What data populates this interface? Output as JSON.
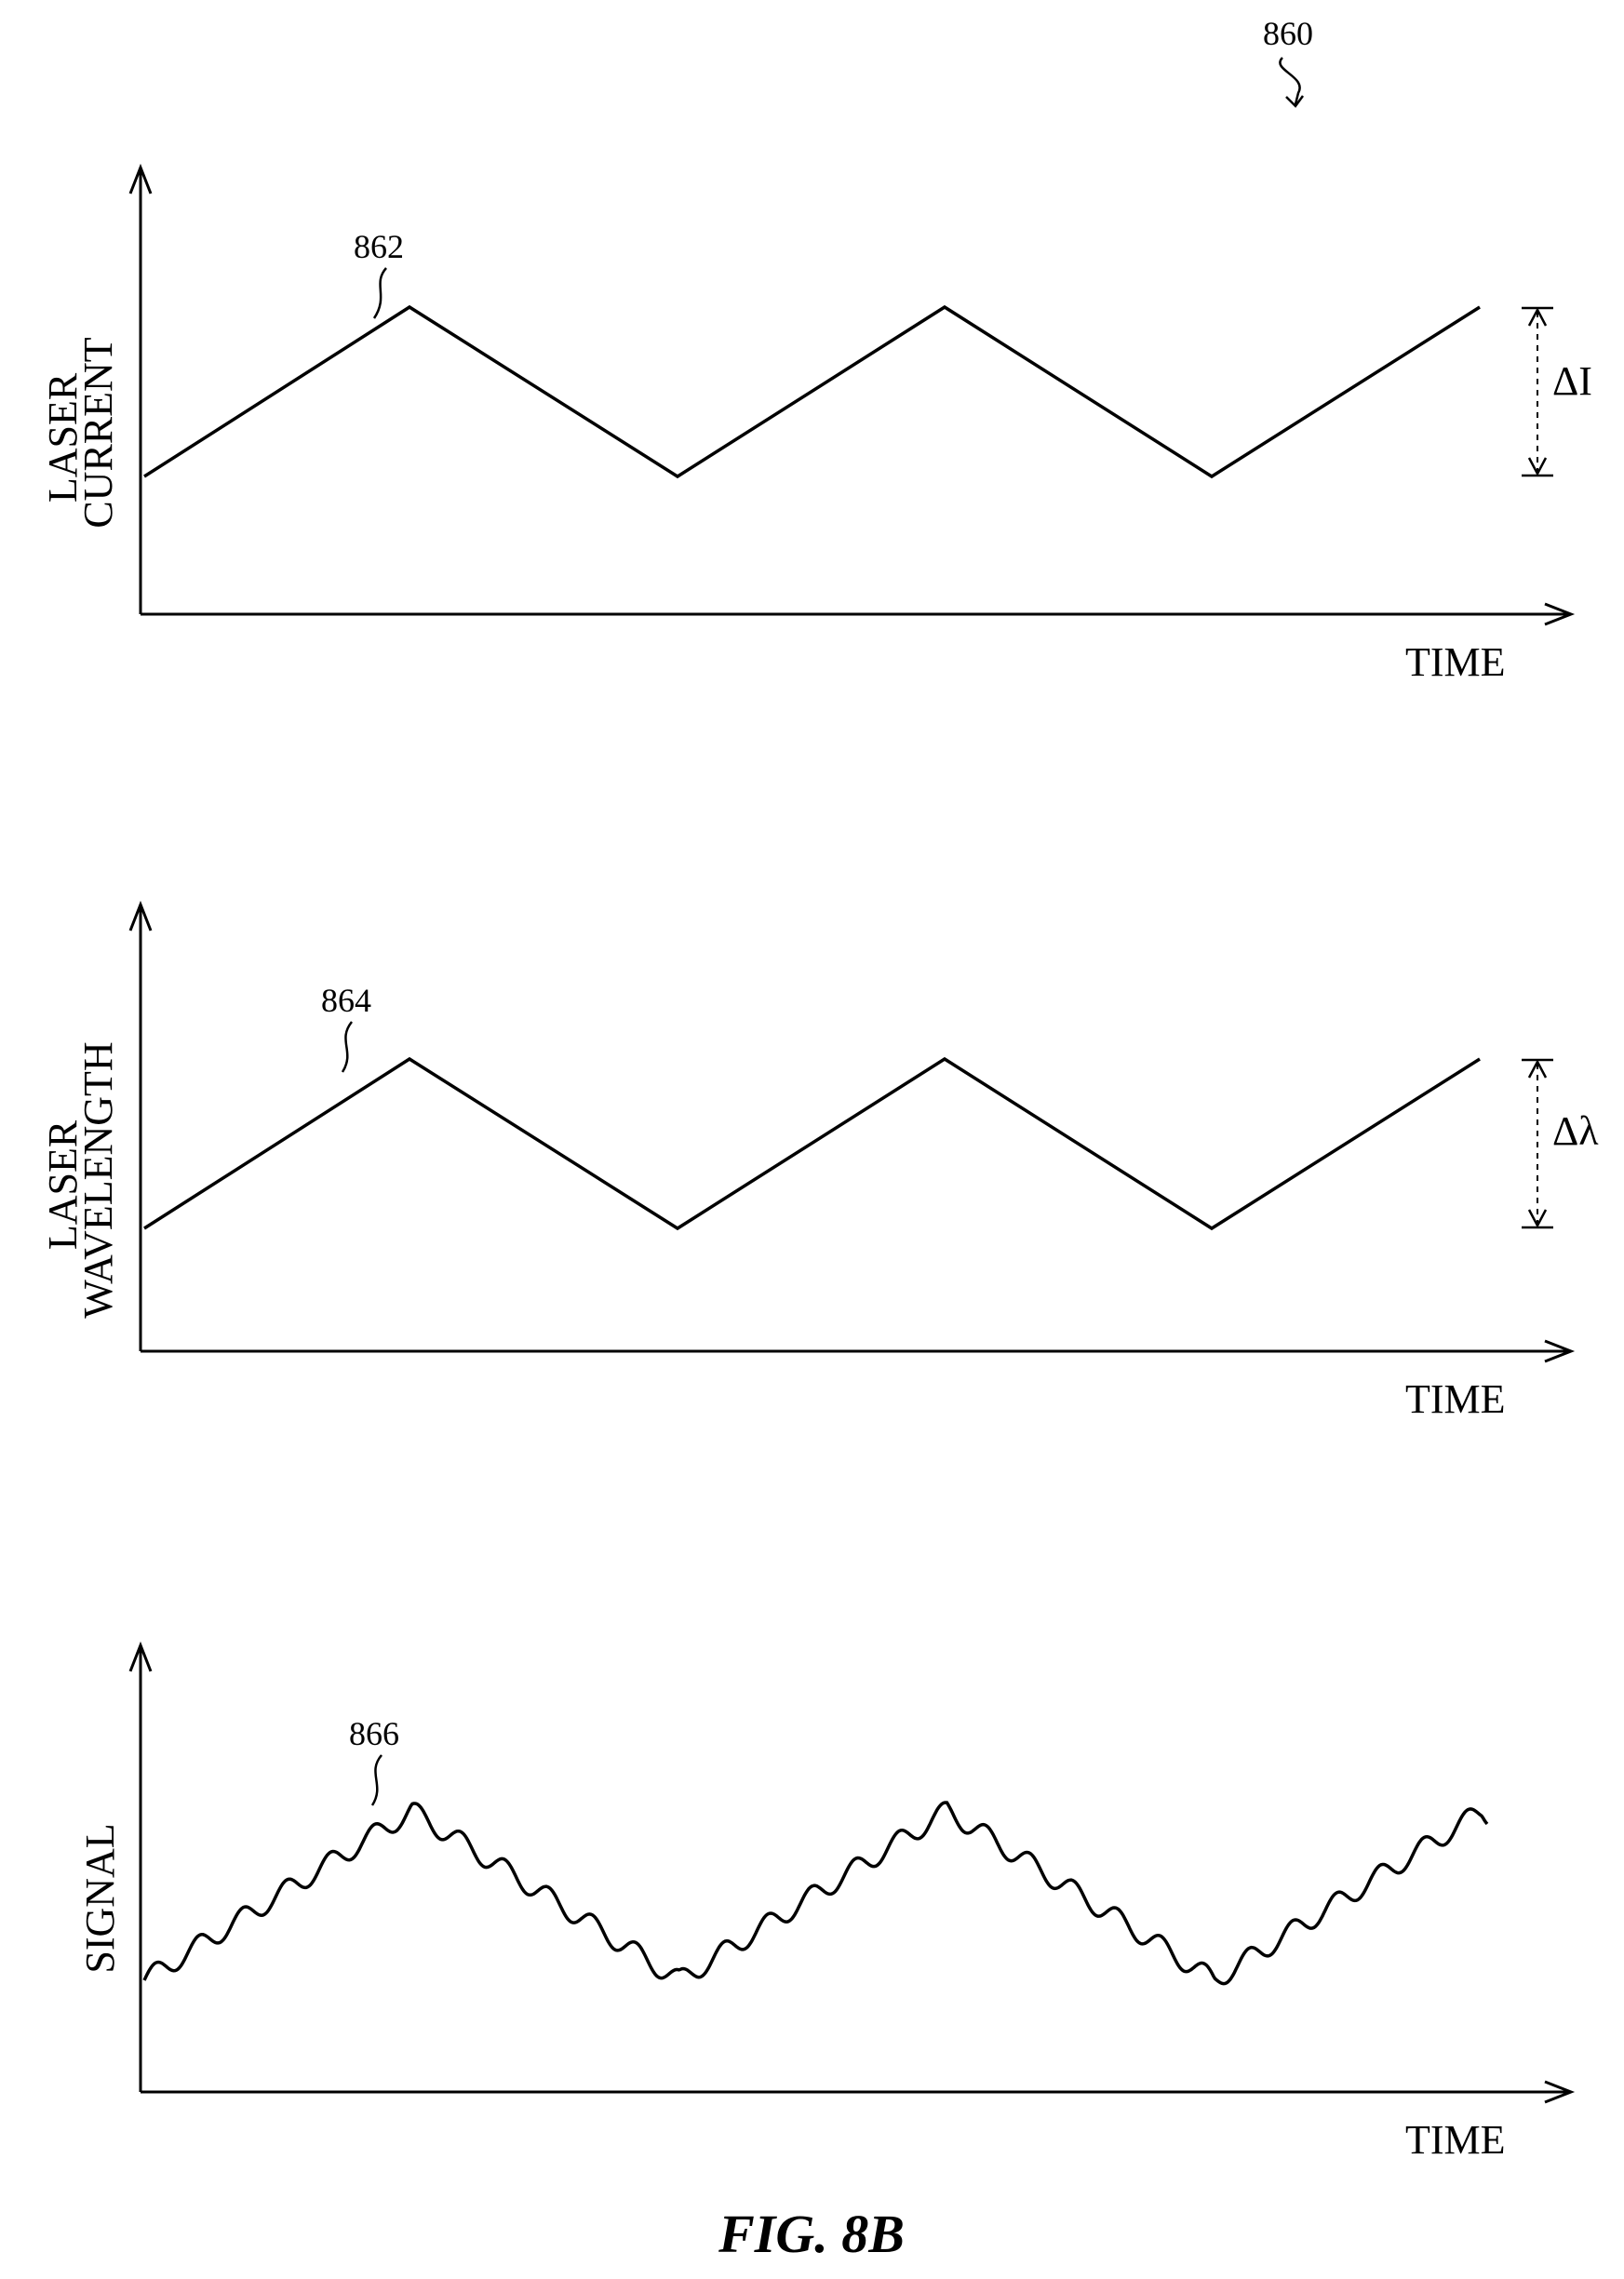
{
  "figure": {
    "ref": "860",
    "caption": "FIG. 8B"
  },
  "panels": [
    {
      "ylabel_lines": [
        "LASER",
        "CURRENT"
      ],
      "xlabel": "TIME",
      "ref": "862",
      "delta": "ΔI",
      "waveform": "triangle"
    },
    {
      "ylabel_lines": [
        "LASER",
        "WAVELENGTH"
      ],
      "xlabel": "TIME",
      "ref": "864",
      "delta": "Δλ",
      "waveform": "triangle"
    },
    {
      "ylabel_lines": [
        "SIGNAL"
      ],
      "xlabel": "TIME",
      "ref": "866",
      "delta": "",
      "waveform": "triangle-with-ripple"
    }
  ]
}
